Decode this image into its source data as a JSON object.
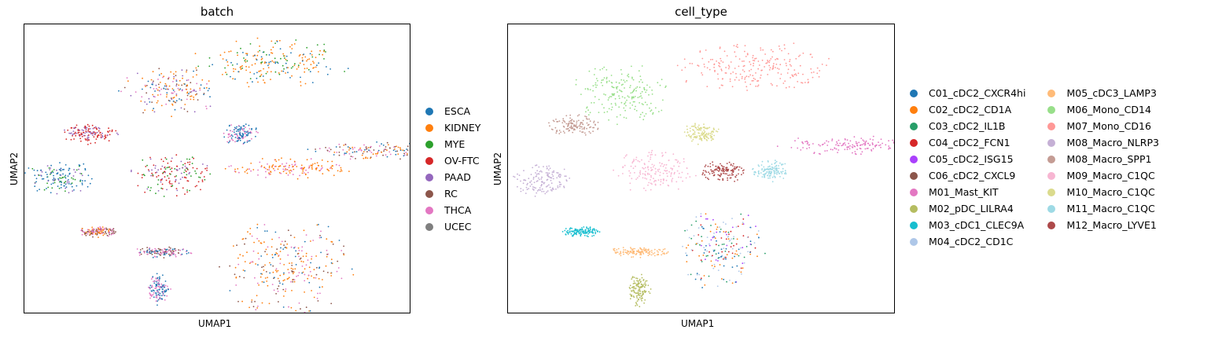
{
  "chart_data": [
    {
      "type": "scatter",
      "title": "batch",
      "xlabel": "UMAP1",
      "ylabel": "UMAP2",
      "grid": false,
      "legend_placement": "right",
      "legend": [
        {
          "label": "ESCA",
          "color": "#1f77b4"
        },
        {
          "label": "KIDNEY",
          "color": "#ff7f0e"
        },
        {
          "label": "MYE",
          "color": "#2ca02c"
        },
        {
          "label": "OV-FTC",
          "color": "#d62728"
        },
        {
          "label": "PAAD",
          "color": "#9467bd"
        },
        {
          "label": "RC",
          "color": "#8c564b"
        },
        {
          "label": "THCA",
          "color": "#e377c2"
        },
        {
          "label": "UCEC",
          "color": "#7f7f7f"
        }
      ],
      "clusters": [
        {
          "x": 0.64,
          "y": 0.87,
          "rx": 0.21,
          "ry": 0.09,
          "colors": [
            "#ff7f0e",
            "#ff7f0e",
            "#ff7f0e",
            "#2ca02c",
            "#1f77b4"
          ]
        },
        {
          "x": 0.38,
          "y": 0.77,
          "rx": 0.14,
          "ry": 0.09,
          "colors": [
            "#ff7f0e",
            "#ff7f0e",
            "#1f77b4",
            "#8c564b",
            "#e377c2",
            "#9467bd"
          ]
        },
        {
          "x": 0.17,
          "y": 0.62,
          "rx": 0.08,
          "ry": 0.04,
          "colors": [
            "#d62728",
            "#d62728",
            "#9467bd"
          ]
        },
        {
          "x": 0.56,
          "y": 0.62,
          "rx": 0.05,
          "ry": 0.04,
          "colors": [
            "#1f77b4",
            "#1f77b4",
            "#e377c2"
          ]
        },
        {
          "x": 0.91,
          "y": 0.56,
          "rx": 0.2,
          "ry": 0.035,
          "colors": [
            "#ff7f0e",
            "#1f77b4",
            "#8c564b",
            "#e377c2"
          ]
        },
        {
          "x": 0.09,
          "y": 0.47,
          "rx": 0.1,
          "ry": 0.06,
          "colors": [
            "#1f77b4",
            "#1f77b4",
            "#9467bd",
            "#2ca02c"
          ]
        },
        {
          "x": 0.38,
          "y": 0.48,
          "rx": 0.11,
          "ry": 0.08,
          "colors": [
            "#d62728",
            "#d62728",
            "#9467bd",
            "#2ca02c"
          ]
        },
        {
          "x": 0.69,
          "y": 0.5,
          "rx": 0.17,
          "ry": 0.04,
          "colors": [
            "#ff7f0e",
            "#ff7f0e",
            "#e377c2"
          ]
        },
        {
          "x": 0.68,
          "y": 0.15,
          "rx": 0.18,
          "ry": 0.19,
          "colors": [
            "#8c564b",
            "#ff7f0e",
            "#ff7f0e",
            "#e377c2",
            "#1f77b4"
          ]
        },
        {
          "x": 0.19,
          "y": 0.28,
          "rx": 0.05,
          "ry": 0.02,
          "colors": [
            "#ff7f0e",
            "#8c564b",
            "#e377c2"
          ]
        },
        {
          "x": 0.36,
          "y": 0.21,
          "rx": 0.08,
          "ry": 0.02,
          "colors": [
            "#8c564b",
            "#e377c2",
            "#1f77b4"
          ]
        },
        {
          "x": 0.35,
          "y": 0.08,
          "rx": 0.03,
          "ry": 0.06,
          "colors": [
            "#e377c2",
            "#1f77b4"
          ]
        }
      ]
    },
    {
      "type": "scatter",
      "title": "cell_type",
      "xlabel": "UMAP1",
      "ylabel": "UMAP2",
      "grid": false,
      "legend_placement": "right",
      "legend": [
        {
          "label": "C01_cDC2_CXCR4hi",
          "color": "#1f77b4"
        },
        {
          "label": "C02_cDC2_CD1A",
          "color": "#ff7f0e"
        },
        {
          "label": "C03_cDC2_IL1B",
          "color": "#279e68"
        },
        {
          "label": "C04_cDC2_FCN1",
          "color": "#d62728"
        },
        {
          "label": "C05_cDC2_ISG15",
          "color": "#aa40fc"
        },
        {
          "label": "C06_cDC2_CXCL9",
          "color": "#8c564b"
        },
        {
          "label": "M01_Mast_KIT",
          "color": "#e377c2"
        },
        {
          "label": "M02_pDC_LILRA4",
          "color": "#b5bd61"
        },
        {
          "label": "M03_cDC1_CLEC9A",
          "color": "#17becf"
        },
        {
          "label": "M04_cDC2_CD1C",
          "color": "#aec7e8"
        },
        {
          "label": "M05_cDC3_LAMP3",
          "color": "#ffbb78"
        },
        {
          "label": "M06_Mono_CD14",
          "color": "#98df8a"
        },
        {
          "label": "M07_Mono_CD16",
          "color": "#ff9896"
        },
        {
          "label": "M08_Macro_NLRP3",
          "color": "#c5b0d5"
        },
        {
          "label": "M08_Macro_SPP1",
          "color": "#c49c94"
        },
        {
          "label": "M09_Macro_C1QC",
          "color": "#f7b6d2"
        },
        {
          "label": "M10_Macro_C1QC",
          "color": "#dbdb8d"
        },
        {
          "label": "M11_Macro_C1QC",
          "color": "#9edae5"
        },
        {
          "label": "M12_Macro_LYVE1",
          "color": "#ad494a"
        }
      ],
      "clusters": [
        {
          "x": 0.64,
          "y": 0.85,
          "rx": 0.22,
          "ry": 0.1,
          "colors": [
            "#ff9896"
          ]
        },
        {
          "x": 0.3,
          "y": 0.76,
          "rx": 0.14,
          "ry": 0.11,
          "colors": [
            "#98df8a"
          ]
        },
        {
          "x": 0.17,
          "y": 0.65,
          "rx": 0.07,
          "ry": 0.04,
          "colors": [
            "#c49c94"
          ]
        },
        {
          "x": 0.5,
          "y": 0.62,
          "rx": 0.05,
          "ry": 0.04,
          "colors": [
            "#dbdb8d"
          ]
        },
        {
          "x": 0.89,
          "y": 0.58,
          "rx": 0.21,
          "ry": 0.035,
          "colors": [
            "#e377c2"
          ]
        },
        {
          "x": 0.09,
          "y": 0.46,
          "rx": 0.08,
          "ry": 0.06,
          "colors": [
            "#c5b0d5"
          ]
        },
        {
          "x": 0.38,
          "y": 0.49,
          "rx": 0.11,
          "ry": 0.08,
          "colors": [
            "#f7b6d2"
          ]
        },
        {
          "x": 0.56,
          "y": 0.49,
          "rx": 0.06,
          "ry": 0.04,
          "colors": [
            "#ad494a"
          ]
        },
        {
          "x": 0.68,
          "y": 0.49,
          "rx": 0.05,
          "ry": 0.04,
          "colors": [
            "#9edae5"
          ]
        },
        {
          "x": 0.55,
          "y": 0.22,
          "rx": 0.12,
          "ry": 0.15,
          "colors": [
            "#aec7e8",
            "#aec7e8",
            "#1f77b4",
            "#279e68",
            "#ff7f0e",
            "#d62728",
            "#aa40fc"
          ]
        },
        {
          "x": 0.19,
          "y": 0.28,
          "rx": 0.05,
          "ry": 0.02,
          "colors": [
            "#17becf"
          ]
        },
        {
          "x": 0.34,
          "y": 0.21,
          "rx": 0.08,
          "ry": 0.02,
          "colors": [
            "#ffbb78"
          ]
        },
        {
          "x": 0.34,
          "y": 0.08,
          "rx": 0.03,
          "ry": 0.06,
          "colors": [
            "#b5bd61"
          ]
        }
      ]
    }
  ]
}
